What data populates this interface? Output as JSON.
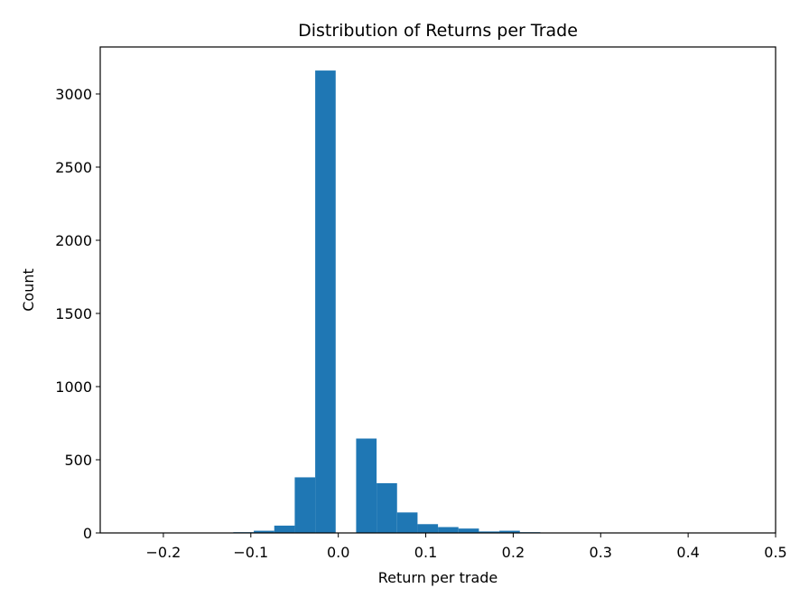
{
  "chart_data": {
    "type": "histogram",
    "title": "Distribution of Returns per Trade",
    "x_label": "Return per trade",
    "y_label": "Count",
    "color": "#1f77b4",
    "bins": [
      -0.237,
      -0.2136,
      -0.1902,
      -0.1668,
      -0.1434,
      -0.12,
      -0.0966,
      -0.0732,
      -0.0498,
      -0.0264,
      -0.003,
      0.0204,
      0.0438,
      0.0672,
      0.0906,
      0.114,
      0.1374,
      0.1608,
      0.1842,
      0.2076,
      0.231,
      0.2544,
      0.2778,
      0.3012,
      0.3246,
      0.348,
      0.3714,
      0.3948,
      0.4182,
      0.4416,
      0.465
    ],
    "values": [
      1,
      0,
      0,
      1,
      3,
      5,
      15,
      50,
      380,
      3160,
      0,
      645,
      340,
      140,
      60,
      40,
      30,
      10,
      15,
      5,
      2,
      1,
      0,
      1,
      0,
      0,
      0,
      0,
      0,
      1
    ],
    "xlim": [
      -0.2722,
      0.5
    ],
    "ylim": [
      0,
      3321
    ],
    "xticks": [
      {
        "value": -0.2,
        "label": "−0.2"
      },
      {
        "value": -0.1,
        "label": "−0.1"
      },
      {
        "value": 0,
        "label": "0.0"
      },
      0.1,
      0.2,
      0.3,
      0.4,
      0.5
    ],
    "yticks": [
      0,
      500,
      1000,
      1500,
      2000,
      2500,
      3000
    ]
  }
}
